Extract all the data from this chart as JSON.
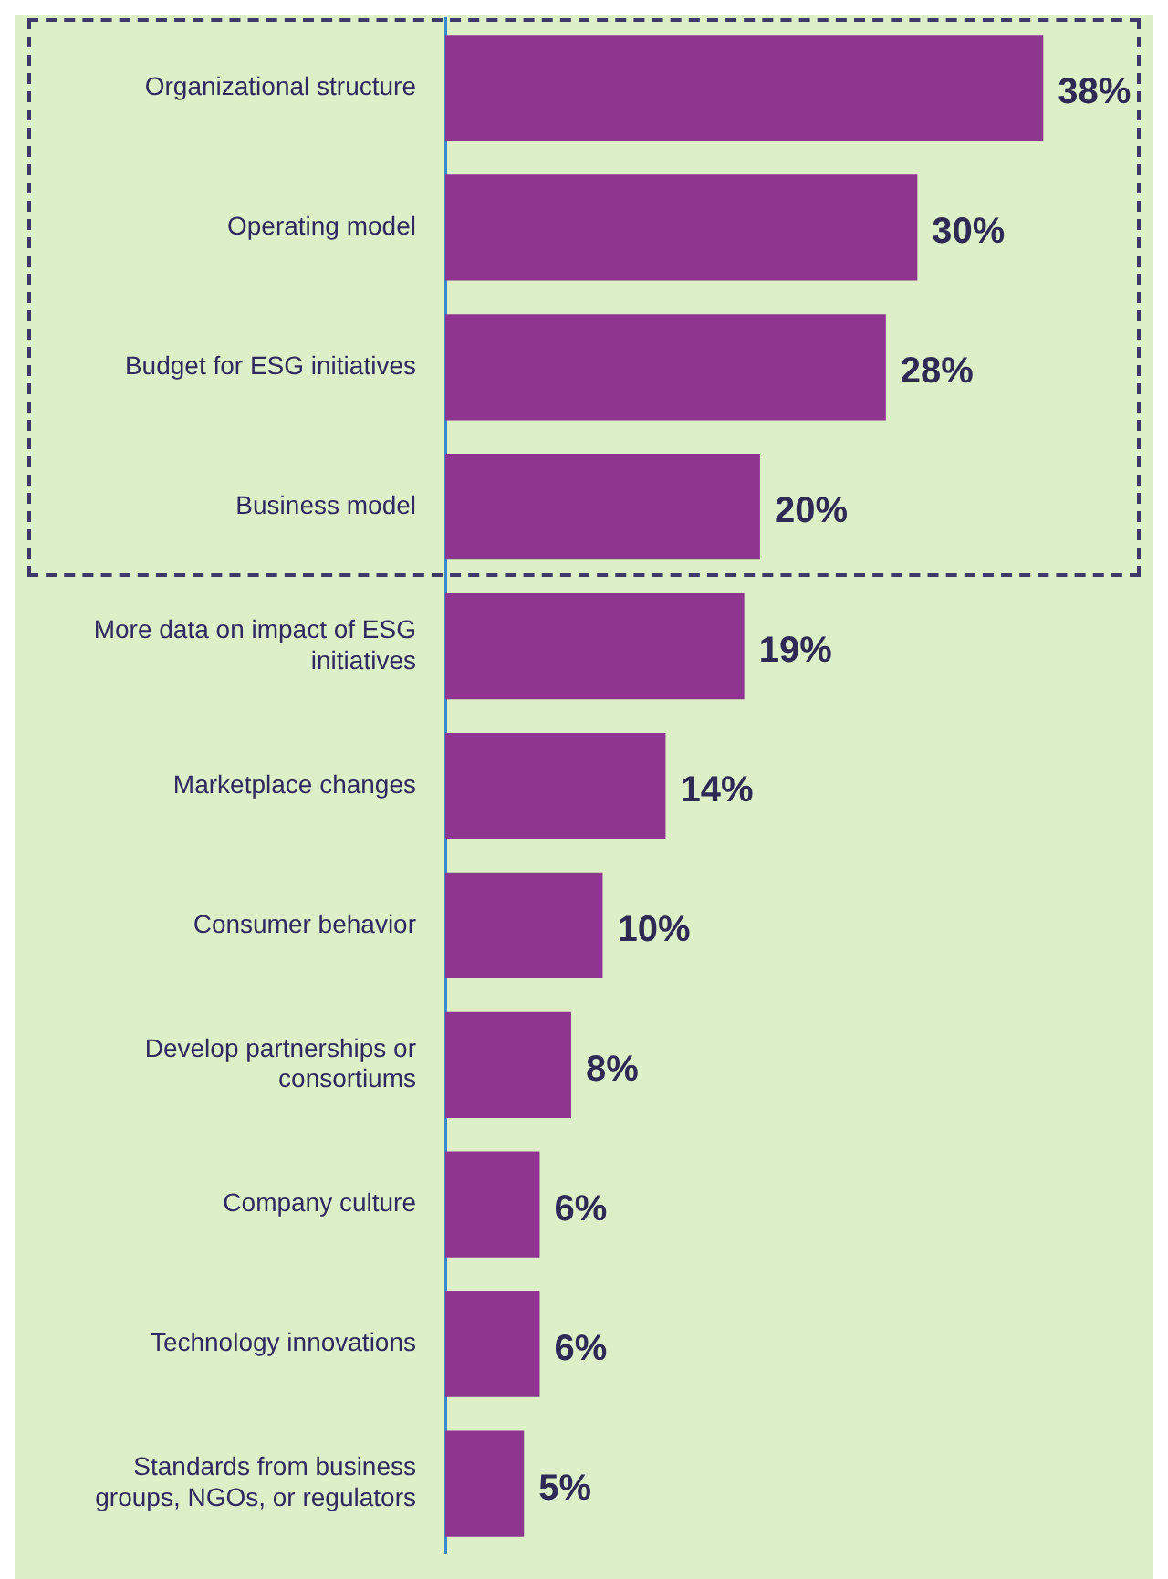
{
  "chart_data": {
    "type": "bar",
    "orientation": "horizontal",
    "categories": [
      "Organizational structure",
      "Operating model",
      "Budget for ESG initiatives",
      "Business model",
      "More data on impact of ESG initiatives",
      "Marketplace changes",
      "Consumer behavior",
      "Develop partnerships or consortiums",
      "Company culture",
      "Technology innovations",
      "Standards from business groups, NGOs, or regulators"
    ],
    "values": [
      38,
      30,
      28,
      20,
      19,
      14,
      10,
      8,
      6,
      6,
      5
    ],
    "value_labels": [
      "38%",
      "30%",
      "28%",
      "20%",
      "19%",
      "14%",
      "10%",
      "8%",
      "6%",
      "6%",
      "5%"
    ],
    "color": "#8e3590",
    "grid": false,
    "legend": false
  }
}
